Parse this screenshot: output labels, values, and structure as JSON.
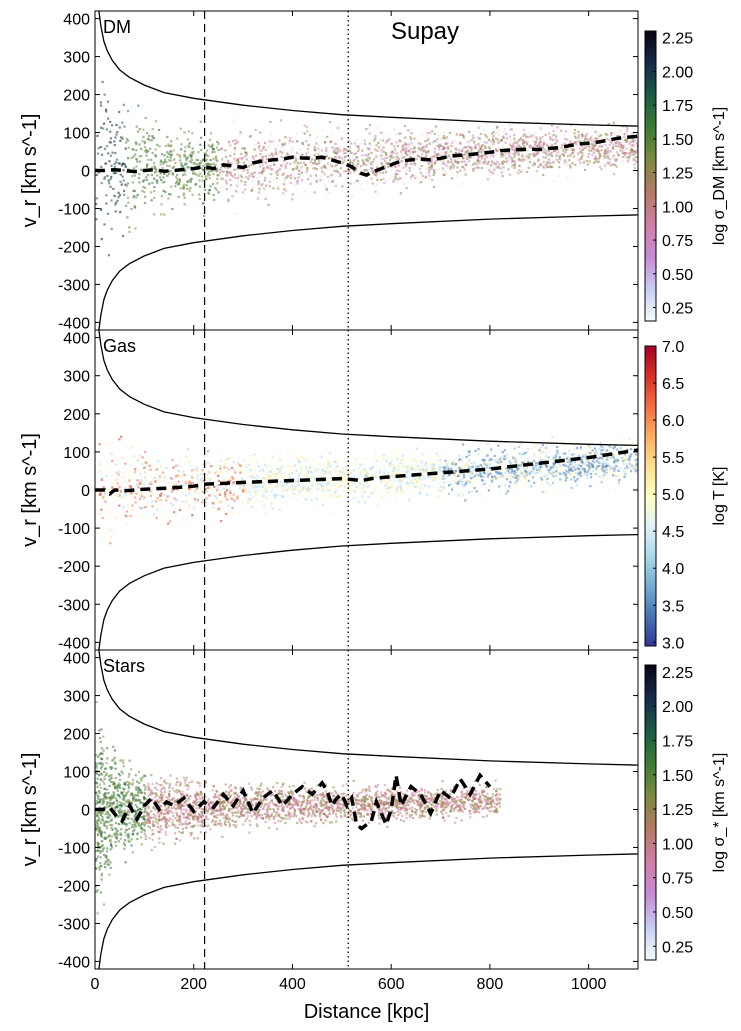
{
  "chart_data": [
    {
      "type": "scatter",
      "panel": "DM",
      "label": "DM",
      "title": "Supay",
      "xlabel": "Distance [kpc]",
      "ylabel": "v_r [km s^-1]",
      "xlim": [
        0,
        1100
      ],
      "ylim": [
        -420,
        420
      ],
      "yticks": [
        -400,
        -300,
        -200,
        -100,
        0,
        100,
        200,
        300,
        400
      ],
      "colorbar": {
        "label": "log σ_DM [km s^-1]",
        "range": [
          0.15,
          2.3
        ],
        "ticks": [
          "0.25",
          "0.50",
          "0.75",
          "1.00",
          "1.25",
          "1.50",
          "1.75",
          "2.00",
          "2.25"
        ],
        "colormap": [
          "#f4fbfb",
          "#c7cdf2",
          "#c78ad6",
          "#cf7fa6",
          "#b57a66",
          "#7d8a3e",
          "#3c7c34",
          "#1a5a45",
          "#172a4a",
          "#0a0612"
        ]
      },
      "median_curve": {
        "x": [
          0,
          20,
          40,
          60,
          80,
          100,
          120,
          140,
          160,
          180,
          200,
          220,
          240,
          260,
          280,
          300,
          320,
          340,
          360,
          380,
          400,
          420,
          440,
          460,
          480,
          500,
          510,
          520,
          530,
          540,
          550,
          560,
          580,
          600,
          620,
          640,
          660,
          680,
          700,
          720,
          740,
          760,
          780,
          800,
          820,
          840,
          860,
          880,
          900,
          920,
          940,
          960,
          980,
          1000,
          1020,
          1040,
          1060,
          1080,
          1100
        ],
        "y": [
          0,
          0,
          2,
          0,
          -3,
          0,
          2,
          -2,
          0,
          3,
          5,
          10,
          5,
          15,
          12,
          8,
          20,
          25,
          28,
          30,
          35,
          33,
          32,
          35,
          28,
          20,
          15,
          10,
          0,
          -8,
          -12,
          -5,
          5,
          15,
          25,
          28,
          30,
          28,
          32,
          38,
          40,
          42,
          45,
          48,
          52,
          54,
          55,
          56,
          55,
          58,
          60,
          65,
          70,
          72,
          75,
          80,
          85,
          88,
          90
        ]
      },
      "escape_velocity": {
        "x": [
          8,
          12,
          18,
          25,
          35,
          50,
          70,
          100,
          140,
          200,
          300,
          400,
          500,
          600,
          800,
          1000,
          1100
        ],
        "y": [
          420,
          380,
          340,
          315,
          290,
          265,
          245,
          225,
          205,
          190,
          172,
          158,
          147,
          140,
          128,
          120,
          117
        ]
      },
      "vlines": [
        {
          "x": 222,
          "style": "dashed"
        },
        {
          "x": 513,
          "style": "dotted"
        }
      ]
    },
    {
      "type": "scatter",
      "panel": "Gas",
      "label": "Gas",
      "xlabel": "Distance [kpc]",
      "ylabel": "v_r [km s^-1]",
      "xlim": [
        0,
        1100
      ],
      "ylim": [
        -420,
        420
      ],
      "yticks": [
        -400,
        -300,
        -200,
        -100,
        0,
        100,
        200,
        300,
        400
      ],
      "colorbar": {
        "label": "log T [K]",
        "range": [
          2.95,
          7.0
        ],
        "ticks": [
          "3.0",
          "3.5",
          "4.0",
          "4.5",
          "5.0",
          "5.5",
          "6.0",
          "6.5",
          "7.0"
        ],
        "colormap": [
          "#313695",
          "#4575b4",
          "#74add1",
          "#abd9e9",
          "#e0f3f8",
          "#ffffbf",
          "#fee090",
          "#fdae61",
          "#f46d43",
          "#d73027",
          "#a50026"
        ]
      },
      "median_curve": {
        "x": [
          0,
          20,
          30,
          40,
          60,
          80,
          100,
          150,
          200,
          220,
          300,
          400,
          500,
          540,
          560,
          600,
          700,
          800,
          900,
          1000,
          1100
        ],
        "y": [
          0,
          0,
          -10,
          0,
          -2,
          0,
          2,
          5,
          10,
          15,
          20,
          25,
          30,
          25,
          30,
          35,
          45,
          55,
          70,
          85,
          105
        ]
      },
      "escape_velocity": {
        "x": [
          8,
          12,
          18,
          25,
          35,
          50,
          70,
          100,
          140,
          200,
          300,
          400,
          500,
          600,
          800,
          1000,
          1100
        ],
        "y": [
          420,
          380,
          340,
          315,
          290,
          265,
          245,
          225,
          205,
          190,
          172,
          158,
          147,
          140,
          128,
          120,
          117
        ]
      },
      "vlines": [
        {
          "x": 222,
          "style": "dashed"
        },
        {
          "x": 513,
          "style": "dotted"
        }
      ]
    },
    {
      "type": "scatter",
      "panel": "Stars",
      "label": "Stars",
      "xlabel": "Distance [kpc]",
      "ylabel": "v_r [km s^-1]",
      "xlim": [
        0,
        1100
      ],
      "ylim": [
        -420,
        420
      ],
      "yticks": [
        -400,
        -300,
        -200,
        -100,
        0,
        100,
        200,
        300,
        400
      ],
      "xticks": [
        0,
        200,
        400,
        600,
        800,
        1000
      ],
      "colorbar": {
        "label": "log σ_* [km s^-1]",
        "range": [
          0.15,
          2.3
        ],
        "ticks": [
          "0.25",
          "0.50",
          "0.75",
          "1.00",
          "1.25",
          "1.50",
          "1.75",
          "2.00",
          "2.25"
        ],
        "colormap": [
          "#f4fbfb",
          "#c7cdf2",
          "#c78ad6",
          "#cf7fa6",
          "#b57a66",
          "#7d8a3e",
          "#3c7c34",
          "#1a5a45",
          "#172a4a",
          "#0a0612"
        ]
      },
      "median_curve": {
        "x": [
          0,
          15,
          30,
          45,
          55,
          70,
          85,
          100,
          115,
          130,
          145,
          160,
          180,
          200,
          220,
          240,
          260,
          280,
          300,
          320,
          340,
          360,
          380,
          400,
          420,
          440,
          460,
          470,
          480,
          490,
          500,
          510,
          520,
          530,
          540,
          560,
          570,
          590,
          600,
          610,
          620,
          640,
          660,
          680,
          700,
          720,
          740,
          760,
          780,
          800
        ],
        "y": [
          0,
          0,
          5,
          -20,
          -30,
          10,
          -25,
          10,
          30,
          0,
          20,
          10,
          30,
          -5,
          20,
          5,
          40,
          10,
          50,
          -10,
          30,
          50,
          10,
          40,
          60,
          40,
          70,
          50,
          10,
          30,
          40,
          10,
          30,
          -40,
          -50,
          -30,
          20,
          -40,
          0,
          90,
          10,
          60,
          40,
          -10,
          50,
          30,
          80,
          40,
          90,
          60
        ]
      },
      "escape_velocity": {
        "x": [
          8,
          12,
          18,
          25,
          35,
          50,
          70,
          100,
          140,
          200,
          300,
          400,
          500,
          600,
          800,
          1000,
          1100
        ],
        "y": [
          420,
          380,
          340,
          315,
          290,
          265,
          245,
          225,
          205,
          190,
          172,
          158,
          147,
          140,
          128,
          120,
          117
        ]
      },
      "vlines": [
        {
          "x": 222,
          "style": "dashed"
        },
        {
          "x": 513,
          "style": "dotted"
        }
      ]
    }
  ]
}
